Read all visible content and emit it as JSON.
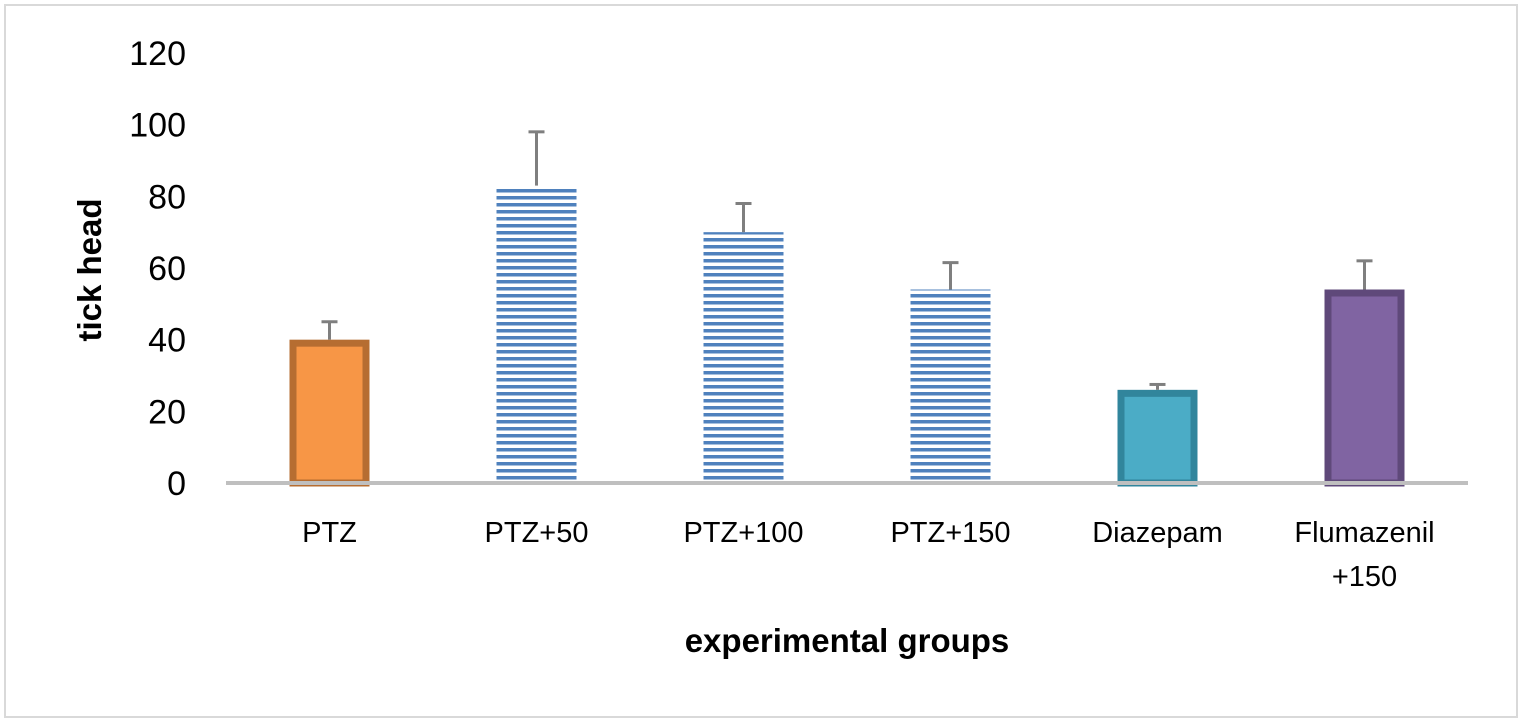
{
  "chart_data": {
    "type": "bar",
    "title": "",
    "xlabel": "experimental groups",
    "ylabel": "tick head",
    "ylim": [
      0,
      120
    ],
    "yticks": [
      0,
      20,
      40,
      60,
      80,
      100,
      120
    ],
    "grid": false,
    "categories": [
      {
        "lines": [
          "PTZ"
        ]
      },
      {
        "lines": [
          "PTZ+50"
        ]
      },
      {
        "lines": [
          "PTZ+100"
        ]
      },
      {
        "lines": [
          "PTZ+150"
        ]
      },
      {
        "lines": [
          "Diazepam"
        ]
      },
      {
        "lines": [
          "Flumazenil",
          "+150"
        ]
      }
    ],
    "values": [
      40,
      83,
      70,
      54,
      26,
      54
    ],
    "errors": [
      5,
      15,
      8,
      7.5,
      1.5,
      8
    ],
    "styles": [
      {
        "fill": "#f79646",
        "stroke": "#b66d31",
        "pattern": "solid"
      },
      {
        "fill": "#ffffff",
        "stroke": "#4f81bd",
        "pattern": "horizontal-stripes"
      },
      {
        "fill": "#ffffff",
        "stroke": "#4f81bd",
        "pattern": "horizontal-stripes"
      },
      {
        "fill": "#ffffff",
        "stroke": "#4f81bd",
        "pattern": "horizontal-stripes"
      },
      {
        "fill": "#4bacc6",
        "stroke": "#31859c",
        "pattern": "solid"
      },
      {
        "fill": "#8064a2",
        "stroke": "#5f497a",
        "pattern": "solid"
      }
    ],
    "axis_color": "#bfbfbf",
    "error_bar_color": "#7f7f7f"
  }
}
